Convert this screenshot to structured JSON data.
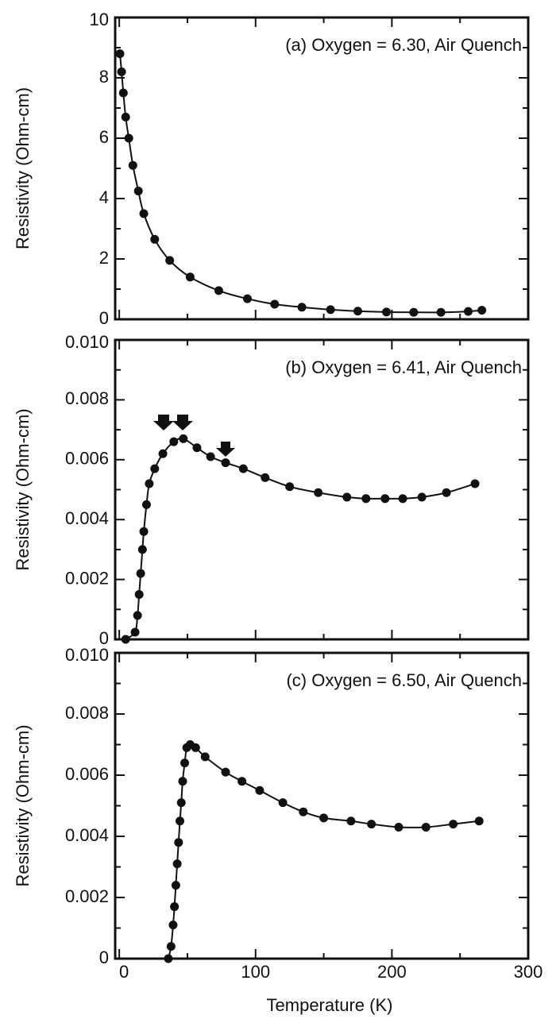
{
  "chart_data": [
    {
      "type": "line",
      "title": "(a) Oxygen = 6.30, Air Quench",
      "ylabel": "Resistivity (Ohm-cm)",
      "xlim": [
        -3,
        300
      ],
      "xticks": [
        0,
        100,
        200,
        300
      ],
      "ylim": [
        0,
        10
      ],
      "yticks": [
        0,
        2,
        4,
        6,
        8,
        10
      ],
      "series": [
        {
          "name": "Oxygen = 6.30",
          "color": "#111111",
          "x": [
            0.5,
            1.7,
            3,
            4.7,
            7,
            10,
            14,
            18,
            26,
            37,
            52,
            73,
            94,
            114,
            134,
            155,
            175,
            196,
            216,
            236,
            256,
            266
          ],
          "values": [
            8.8,
            8.2,
            7.5,
            6.7,
            6.0,
            5.1,
            4.25,
            3.5,
            2.65,
            1.95,
            1.4,
            0.95,
            0.68,
            0.5,
            0.4,
            0.32,
            0.27,
            0.24,
            0.23,
            0.23,
            0.26,
            0.3
          ]
        }
      ]
    },
    {
      "type": "line",
      "title": "(b) Oxygen = 6.41, Air Quench",
      "ylabel": "Resistivity (Ohm-cm)",
      "xlim": [
        -3,
        300
      ],
      "xticks": [
        0,
        100,
        200,
        300
      ],
      "ylim": [
        0,
        0.01
      ],
      "yticks": [
        0,
        0.002,
        0.004,
        0.006,
        0.008,
        {
          "value": 0.01,
          "label": "0.010"
        }
      ],
      "series": [
        {
          "name": "Oxygen = 6.41",
          "color": "#111111",
          "x": [
            4.7,
            11.6,
            13.4,
            14.6,
            15.7,
            17,
            18,
            20,
            22,
            26,
            32,
            40,
            47,
            57,
            67,
            78,
            91,
            107,
            125,
            146,
            167,
            181,
            195,
            208,
            222,
            240,
            261
          ],
          "values": [
            0,
            0.00024,
            0.0008,
            0.0015,
            0.0022,
            0.003,
            0.0036,
            0.0045,
            0.0052,
            0.0057,
            0.0062,
            0.0066,
            0.0067,
            0.0064,
            0.0061,
            0.0059,
            0.0057,
            0.0054,
            0.0051,
            0.0049,
            0.00475,
            0.0047,
            0.0047,
            0.0047,
            0.00475,
            0.0049,
            0.0052
          ]
        }
      ]
    },
    {
      "type": "line",
      "title": "(c) Oxygen = 6.50, Air Quench",
      "ylabel": "Resistivity (Ohm-cm)",
      "xlabel": "Temperature (K)",
      "xlim": [
        -3,
        300
      ],
      "xticks": [
        0,
        100,
        200,
        300
      ],
      "ylim": [
        0,
        0.01
      ],
      "yticks": [
        0,
        0.002,
        0.004,
        0.006,
        0.008,
        {
          "value": 0.01,
          "label": "0.010"
        }
      ],
      "series": [
        {
          "name": "Oxygen = 6.50",
          "color": "#111111",
          "x": [
            36,
            38,
            39.5,
            40.5,
            41.5,
            42.5,
            43.5,
            44.5,
            45.5,
            46.5,
            48,
            49.5,
            52,
            56,
            63,
            78,
            90,
            103,
            120,
            135,
            150,
            170,
            185,
            205,
            225,
            245,
            264
          ],
          "values": [
            0,
            0.0004,
            0.0011,
            0.0017,
            0.0024,
            0.0031,
            0.0038,
            0.0045,
            0.0051,
            0.0058,
            0.0064,
            0.0069,
            0.007,
            0.0069,
            0.0066,
            0.0061,
            0.0058,
            0.0055,
            0.0051,
            0.0048,
            0.0046,
            0.0045,
            0.0044,
            0.0043,
            0.0043,
            0.0044,
            0.0045
          ]
        }
      ]
    }
  ]
}
